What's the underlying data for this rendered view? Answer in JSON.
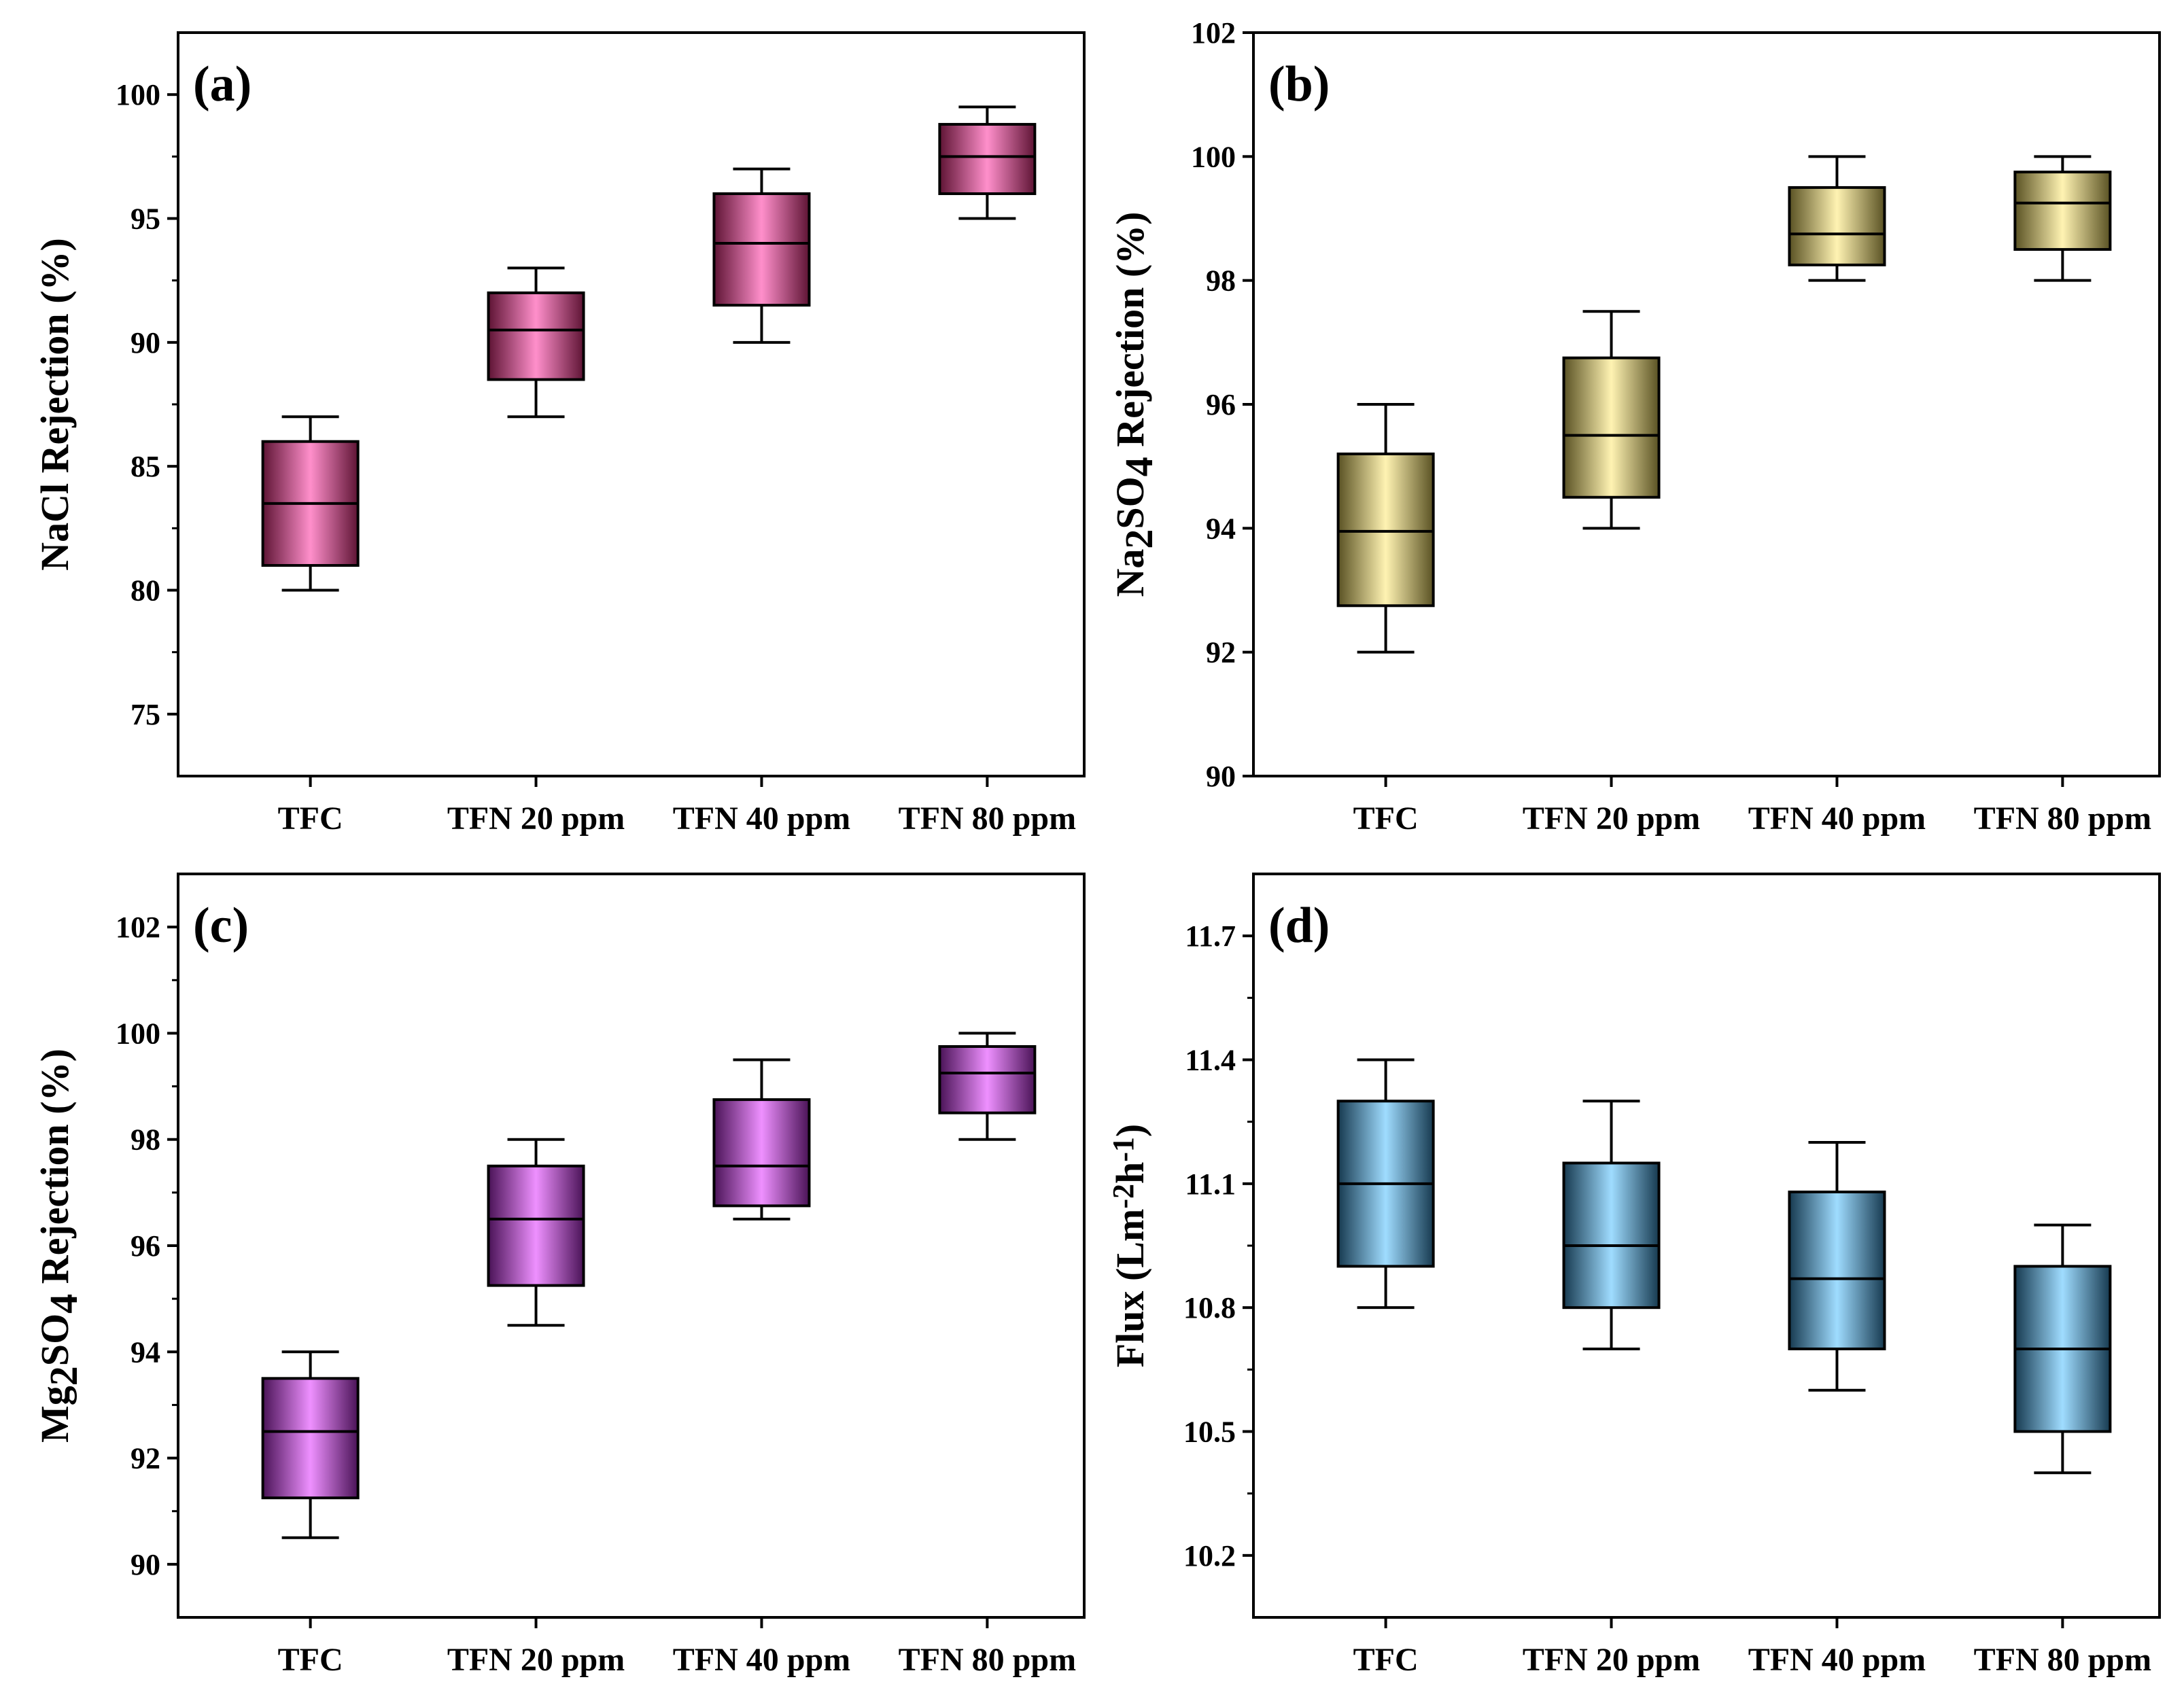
{
  "figure": {
    "title": ""
  },
  "chart_data": [
    {
      "type": "box",
      "panel_label": "(a)",
      "ylabel_parts": [
        {
          "text": "NaCl Rejection (%)"
        }
      ],
      "categories": [
        "TFC",
        "TFN 20 ppm",
        "TFN 40 ppm",
        "TFN 80 ppm"
      ],
      "ylim": [
        72.5,
        102.5
      ],
      "yticks": [
        75,
        80,
        85,
        90,
        95,
        100
      ],
      "ytick_labels": [
        "75",
        "80",
        "85",
        "90",
        "95",
        "100"
      ],
      "minor_ticks": true,
      "boxes": [
        {
          "min": 80.0,
          "q1": 81.0,
          "median": 83.5,
          "q3": 86.0,
          "max": 87.0
        },
        {
          "min": 87.0,
          "q1": 88.5,
          "median": 90.5,
          "q3": 92.0,
          "max": 93.0
        },
        {
          "min": 90.0,
          "q1": 91.5,
          "median": 94.0,
          "q3": 96.0,
          "max": 97.0
        },
        {
          "min": 95.0,
          "q1": 96.0,
          "median": 97.5,
          "q3": 98.8,
          "max": 99.5
        }
      ],
      "colors": {
        "dark": "#5e1434",
        "light": "#ff8fcb"
      }
    },
    {
      "type": "box",
      "panel_label": "(b)",
      "ylabel_parts": [
        {
          "text": "Na"
        },
        {
          "text": "2",
          "sub": true
        },
        {
          "text": "SO"
        },
        {
          "text": "4",
          "sub": true
        },
        {
          "text": " Rejection (%)"
        }
      ],
      "categories": [
        "TFC",
        "TFN 20 ppm",
        "TFN 40 ppm",
        "TFN 80 ppm"
      ],
      "ylim": [
        90,
        102
      ],
      "yticks": [
        90,
        92,
        94,
        96,
        98,
        100,
        102
      ],
      "ytick_labels": [
        "90",
        "92",
        "94",
        "96",
        "98",
        "100",
        "102"
      ],
      "minor_ticks": false,
      "boxes": [
        {
          "min": 92.0,
          "q1": 92.75,
          "median": 93.95,
          "q3": 95.2,
          "max": 96.0
        },
        {
          "min": 94.0,
          "q1": 94.5,
          "median": 95.5,
          "q3": 96.75,
          "max": 97.5
        },
        {
          "min": 98.0,
          "q1": 98.25,
          "median": 98.75,
          "q3": 99.5,
          "max": 100.0
        },
        {
          "min": 98.0,
          "q1": 98.5,
          "median": 99.25,
          "q3": 99.75,
          "max": 100.0
        }
      ],
      "colors": {
        "dark": "#5a5224",
        "light": "#fff3b2"
      }
    },
    {
      "type": "box",
      "panel_label": "(c)",
      "ylabel_parts": [
        {
          "text": "Mg"
        },
        {
          "text": "2",
          "sub": true
        },
        {
          "text": "SO"
        },
        {
          "text": "4",
          "sub": true
        },
        {
          "text": " Rejection (%)"
        }
      ],
      "categories": [
        "TFC",
        "TFN 20 ppm",
        "TFN 40 ppm",
        "TFN 80 ppm"
      ],
      "ylim": [
        89,
        103
      ],
      "yticks": [
        90,
        92,
        94,
        96,
        98,
        100,
        102
      ],
      "ytick_labels": [
        "90",
        "92",
        "94",
        "96",
        "98",
        "100",
        "102"
      ],
      "minor_ticks": true,
      "boxes": [
        {
          "min": 90.5,
          "q1": 91.25,
          "median": 92.5,
          "q3": 93.5,
          "max": 94.0
        },
        {
          "min": 94.5,
          "q1": 95.25,
          "median": 96.5,
          "q3": 97.5,
          "max": 98.0
        },
        {
          "min": 96.5,
          "q1": 96.75,
          "median": 97.5,
          "q3": 98.75,
          "max": 99.5
        },
        {
          "min": 98.0,
          "q1": 98.5,
          "median": 99.25,
          "q3": 99.75,
          "max": 100.0
        }
      ],
      "colors": {
        "dark": "#4a1357",
        "light": "#ee90ff"
      }
    },
    {
      "type": "box",
      "panel_label": "(d)",
      "ylabel_parts": [
        {
          "text": "Flux (Lm"
        },
        {
          "text": "-2",
          "sup": true
        },
        {
          "text": "h"
        },
        {
          "text": "-1",
          "sup": true
        },
        {
          "text": ")"
        }
      ],
      "categories": [
        "TFC",
        "TFN 20 ppm",
        "TFN 40 ppm",
        "TFN 80 ppm"
      ],
      "ylim": [
        10.05,
        11.85
      ],
      "yticks": [
        10.2,
        10.5,
        10.8,
        11.1,
        11.4,
        11.7
      ],
      "ytick_labels": [
        "10.2",
        "10.5",
        "10.8",
        "11.1",
        "11.4",
        "11.7"
      ],
      "minor_ticks": true,
      "boxes": [
        {
          "min": 10.8,
          "q1": 10.9,
          "median": 11.1,
          "q3": 11.3,
          "max": 11.4
        },
        {
          "min": 10.7,
          "q1": 10.8,
          "median": 10.95,
          "q3": 11.15,
          "max": 11.3
        },
        {
          "min": 10.6,
          "q1": 10.7,
          "median": 10.87,
          "q3": 11.08,
          "max": 11.2
        },
        {
          "min": 10.4,
          "q1": 10.5,
          "median": 10.7,
          "q3": 10.9,
          "max": 11.0
        }
      ],
      "colors": {
        "dark": "#173a50",
        "light": "#9fdcff"
      }
    }
  ]
}
